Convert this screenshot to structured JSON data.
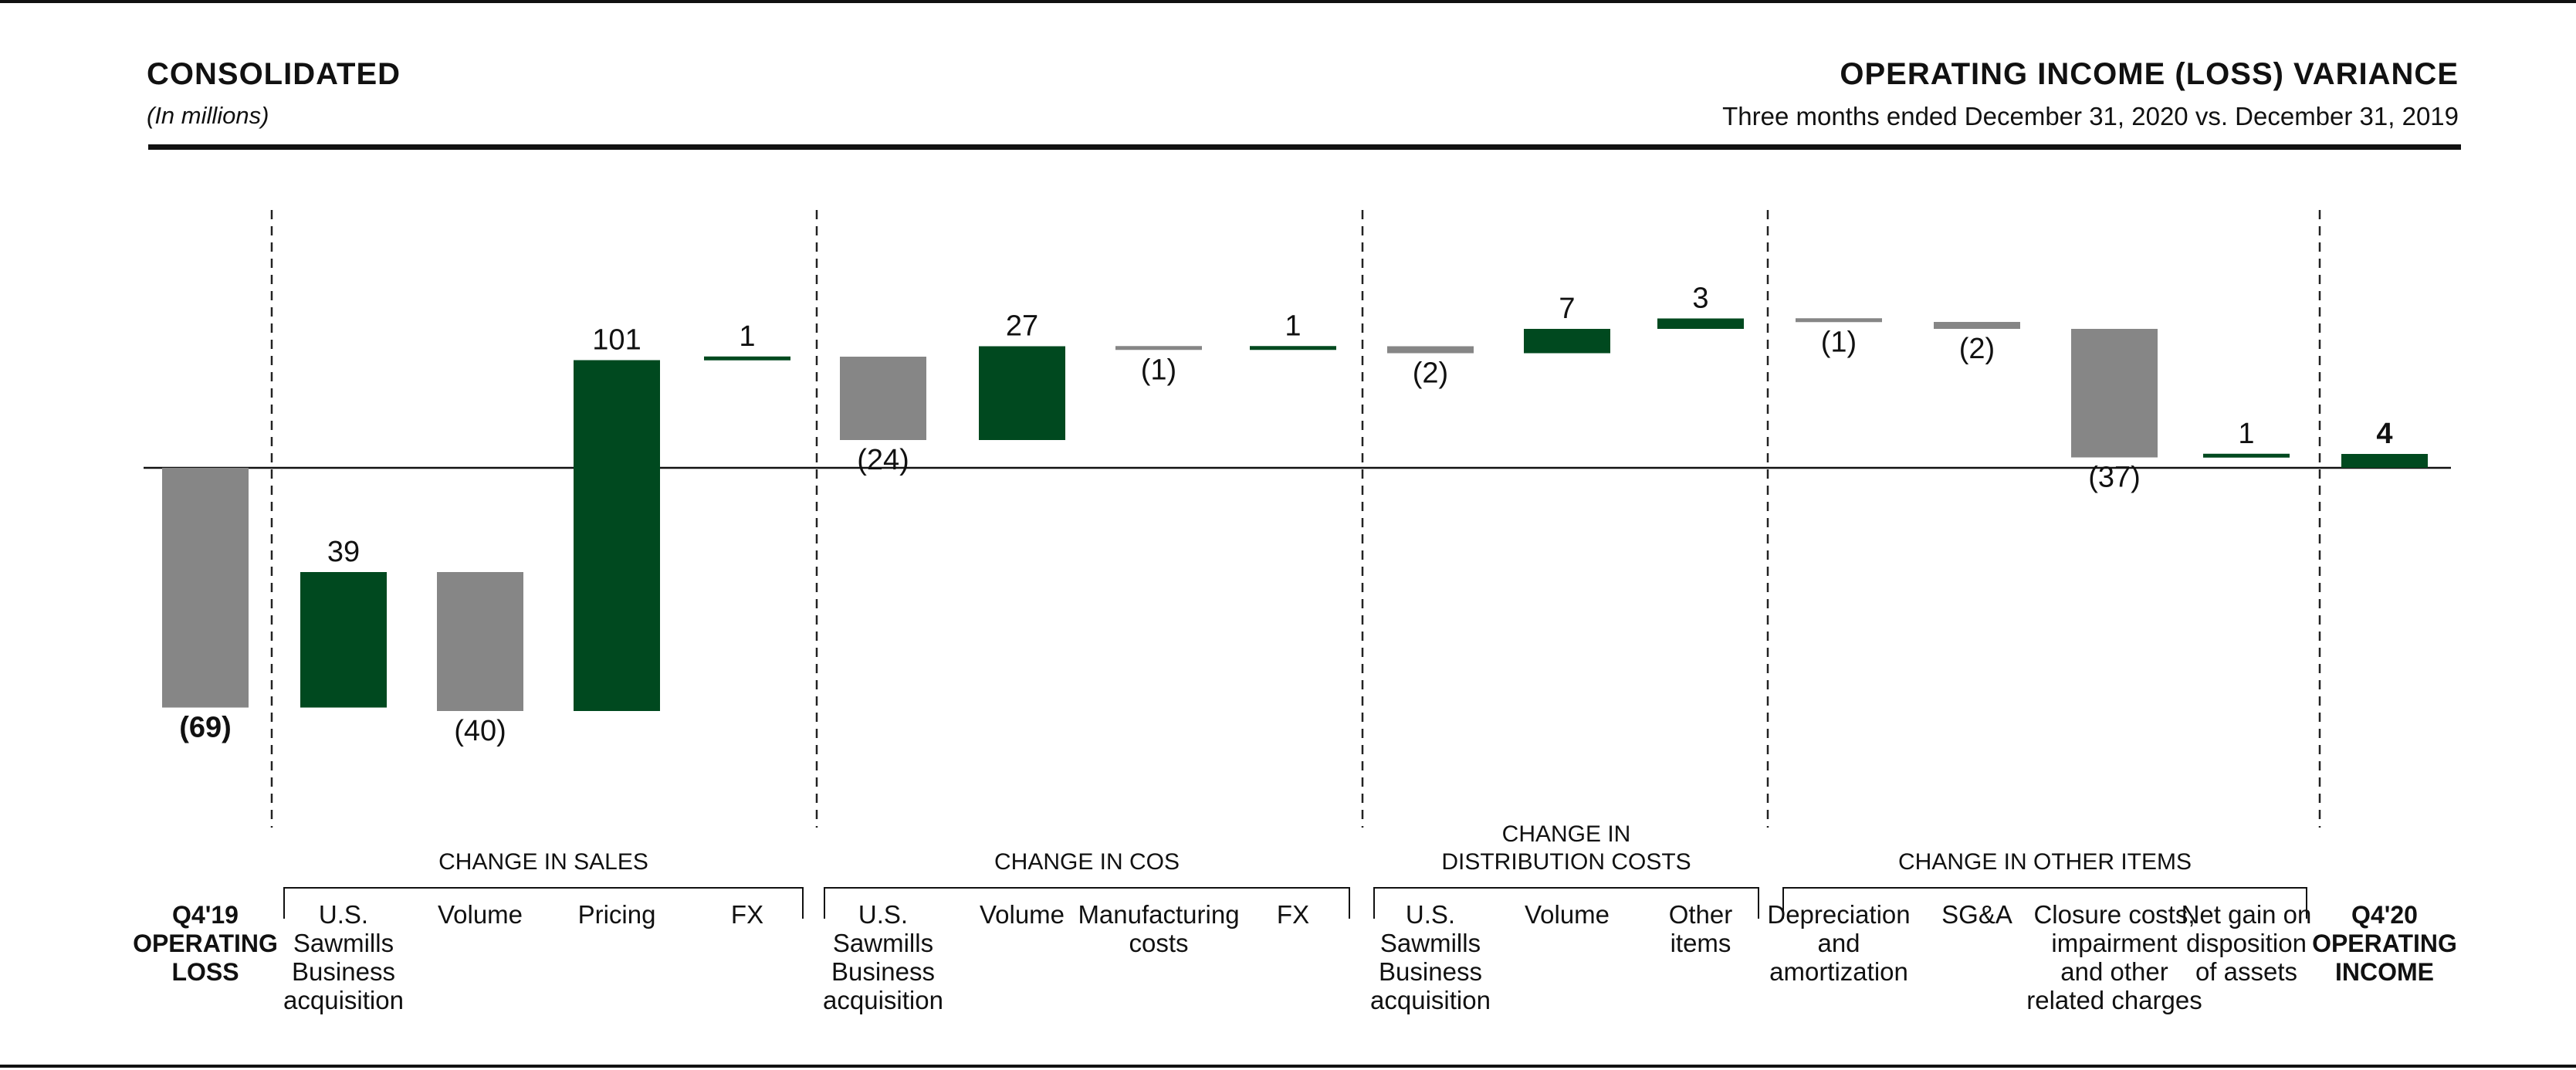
{
  "header": {
    "left_title": "CONSOLIDATED",
    "left_subtitle": "(In millions)",
    "right_title": "OPERATING INCOME (LOSS) VARIANCE",
    "right_subtitle": "Three months ended December 31, 2020 vs. December 31, 2019"
  },
  "colors": {
    "increase": "#00491f",
    "decrease": "#868686",
    "total": "#868686",
    "final_total": "#00491f",
    "text": "#111111",
    "divider": "#222222"
  },
  "chart_data": {
    "type": "bar",
    "subtype": "waterfall",
    "unit": "millions",
    "start": {
      "label": "Q4'19\nOPERATING\nLOSS",
      "value": -69,
      "display": "(69)"
    },
    "end": {
      "label": "Q4'20\nOPERATING\nINCOME",
      "value": 4,
      "display": "4"
    },
    "groups": [
      {
        "title": "CHANGE IN SALES",
        "items": [
          {
            "label": "U.S.\nSawmills\nBusiness\nacquisition",
            "value": 39,
            "display": "39"
          },
          {
            "label": "Volume",
            "value": -40,
            "display": "(40)"
          },
          {
            "label": "Pricing",
            "value": 101,
            "display": "101"
          },
          {
            "label": "FX",
            "value": 1,
            "display": "1"
          }
        ]
      },
      {
        "title": "CHANGE IN COS",
        "items": [
          {
            "label": "U.S.\nSawmills\nBusiness\nacquisition",
            "value": -24,
            "display": "(24)"
          },
          {
            "label": "Volume",
            "value": 27,
            "display": "27"
          },
          {
            "label": "Manufacturing\ncosts",
            "value": -1,
            "display": "(1)"
          },
          {
            "label": "FX",
            "value": 1,
            "display": "1"
          }
        ]
      },
      {
        "title": "CHANGE IN\nDISTRIBUTION COSTS",
        "items": [
          {
            "label": "U.S.\nSawmills\nBusiness\nacquisition",
            "value": -2,
            "display": "(2)"
          },
          {
            "label": "Volume",
            "value": 7,
            "display": "7"
          },
          {
            "label": "Other\nitems",
            "value": 3,
            "display": "3"
          }
        ]
      },
      {
        "title": "CHANGE IN OTHER ITEMS",
        "items": [
          {
            "label": "Depreciation\nand\namortization",
            "value": -1,
            "display": "(1)"
          },
          {
            "label": "SG&A",
            "value": -2,
            "display": "(2)"
          },
          {
            "label": "Closure costs,\nimpairment\nand other\nrelated charges",
            "value": -37,
            "display": "(37)"
          },
          {
            "label": "Net gain on\ndisposition\nof assets",
            "value": 1,
            "display": "1"
          }
        ]
      }
    ]
  }
}
